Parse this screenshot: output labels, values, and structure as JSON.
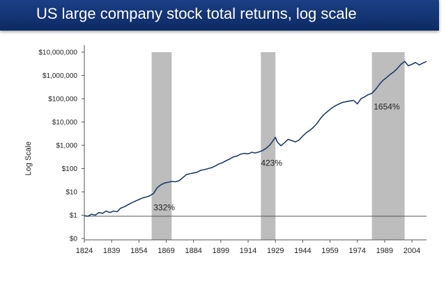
{
  "title": "US large company stock total returns, log scale",
  "chart_data": {
    "type": "line",
    "title": "US large company stock total returns, log scale",
    "ylabel": "Log Scale",
    "xlabel": "",
    "yscale": "log",
    "xlim": [
      1824,
      2012
    ],
    "ylim": [
      0.1,
      10000000
    ],
    "x_ticks": [
      1824,
      1839,
      1854,
      1869,
      1884,
      1899,
      1914,
      1929,
      1944,
      1959,
      1974,
      1989,
      2004
    ],
    "y_ticks": [
      {
        "value": 0.1,
        "label": "$0"
      },
      {
        "value": 1,
        "label": "$1"
      },
      {
        "value": 10,
        "label": "$10"
      },
      {
        "value": 100,
        "label": "$100"
      },
      {
        "value": 1000,
        "label": "$1,000"
      },
      {
        "value": 10000,
        "label": "$10,000"
      },
      {
        "value": 100000,
        "label": "$100,000"
      },
      {
        "value": 1000000,
        "label": "$1,000,000"
      },
      {
        "value": 10000000,
        "label": "$10,000,000"
      }
    ],
    "grid": false,
    "line_color": "#1f3a68",
    "shade_color": "#bdbdbd",
    "shaded_periods": [
      {
        "start": 1861,
        "end": 1872,
        "label": "332%",
        "label_x": 1862,
        "label_y": 1.6
      },
      {
        "start": 1921,
        "end": 1929,
        "label": "423%",
        "label_x": 1921,
        "label_y": 130
      },
      {
        "start": 1982,
        "end": 2000,
        "label": "1654%",
        "label_x": 1983,
        "label_y": 35000
      }
    ],
    "series": [
      {
        "x": [
          1824,
          1826,
          1828,
          1830,
          1832,
          1834,
          1836,
          1838,
          1840,
          1842,
          1844,
          1846,
          1848,
          1850,
          1852,
          1854,
          1856,
          1858,
          1860,
          1862,
          1864,
          1866,
          1868,
          1870,
          1872,
          1874,
          1876,
          1878,
          1880,
          1882,
          1884,
          1886,
          1888,
          1890,
          1892,
          1894,
          1896,
          1898,
          1900,
          1902,
          1904,
          1906,
          1908,
          1910,
          1912,
          1914,
          1916,
          1918,
          1920,
          1922,
          1924,
          1926,
          1928,
          1929,
          1930,
          1932,
          1934,
          1936,
          1938,
          1940,
          1942,
          1944,
          1946,
          1948,
          1950,
          1952,
          1954,
          1956,
          1958,
          1960,
          1962,
          1964,
          1966,
          1968,
          1970,
          1972,
          1974,
          1976,
          1978,
          1980,
          1982,
          1984,
          1986,
          1988,
          1990,
          1992,
          1994,
          1996,
          1998,
          2000,
          2002,
          2004,
          2006,
          2008,
          2010,
          2012
        ],
        "y": [
          0.95,
          0.9,
          1.1,
          1.0,
          1.3,
          1.2,
          1.5,
          1.3,
          1.5,
          1.4,
          2.0,
          2.3,
          2.8,
          3.4,
          4.0,
          4.7,
          5.5,
          6.0,
          6.8,
          8.5,
          15,
          20,
          24,
          26,
          28,
          27,
          30,
          40,
          55,
          60,
          65,
          70,
          85,
          90,
          100,
          110,
          130,
          160,
          180,
          220,
          260,
          320,
          350,
          420,
          450,
          430,
          500,
          470,
          520,
          600,
          750,
          1050,
          1700,
          2200,
          1400,
          950,
          1300,
          1800,
          1600,
          1400,
          1700,
          2500,
          3500,
          4500,
          6000,
          9000,
          15000,
          22000,
          30000,
          40000,
          50000,
          60000,
          70000,
          75000,
          80000,
          85000,
          60000,
          100000,
          120000,
          150000,
          170000,
          250000,
          400000,
          600000,
          800000,
          1100000,
          1400000,
          2000000,
          3000000,
          4000000,
          2600000,
          3000000,
          3600000,
          2800000,
          3400000,
          4000000
        ]
      }
    ]
  }
}
